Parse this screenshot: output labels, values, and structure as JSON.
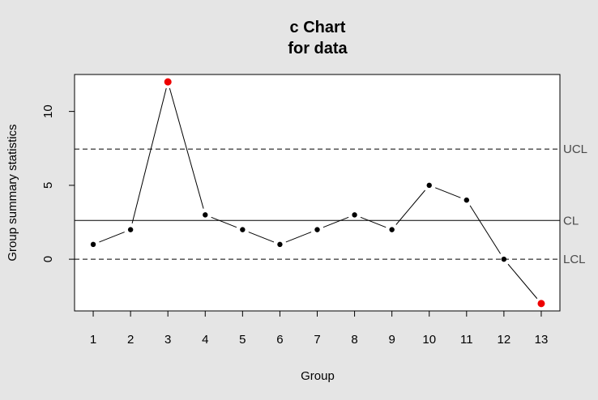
{
  "chart_data": {
    "type": "line",
    "title_line1": "c Chart",
    "title_line2": "for data",
    "xlabel": "Group",
    "ylabel": "Group summary statistics",
    "x": [
      1,
      2,
      3,
      4,
      5,
      6,
      7,
      8,
      9,
      10,
      11,
      12,
      13
    ],
    "xticks": [
      "1",
      "2",
      "3",
      "4",
      "5",
      "6",
      "7",
      "8",
      "9",
      "10",
      "11",
      "12",
      "13"
    ],
    "yticks": [
      "0",
      "5",
      "10"
    ],
    "series": [
      {
        "values": [
          1,
          2,
          12,
          3,
          2,
          1,
          2,
          3,
          2,
          5,
          4,
          0,
          -3
        ],
        "out_of_control": [
          false,
          false,
          true,
          false,
          false,
          false,
          false,
          false,
          false,
          false,
          false,
          false,
          true
        ]
      }
    ],
    "limits": {
      "ucl": {
        "label": "UCL",
        "value": 7.45
      },
      "cl": {
        "label": "CL",
        "value": 2.62
      },
      "lcl": {
        "label": "LCL",
        "value": 0
      }
    },
    "xlim": [
      0.5,
      13.5
    ],
    "ylim": [
      -3.5,
      12.5
    ],
    "colors": {
      "point": "#000000",
      "violation": "#ee0000",
      "line": "#000000",
      "panel": "#ffffff",
      "background": "#e5e5e5"
    }
  }
}
